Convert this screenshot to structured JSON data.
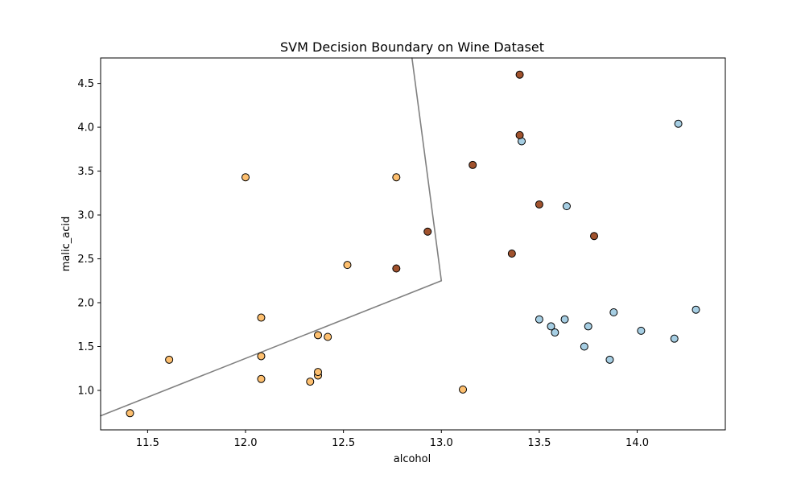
{
  "chart_data": {
    "type": "scatter",
    "title": "SVM Decision Boundary on Wine Dataset",
    "xlabel": "alcohol",
    "ylabel": "malic_acid",
    "xlim": [
      11.26,
      14.45
    ],
    "ylim": [
      0.55,
      4.79
    ],
    "x_ticks": [
      "11.5",
      "12.0",
      "12.5",
      "13.0",
      "13.5",
      "14.0"
    ],
    "x_tick_values": [
      11.5,
      12.0,
      12.5,
      13.0,
      13.5,
      14.0
    ],
    "y_ticks": [
      "1.0",
      "1.5",
      "2.0",
      "2.5",
      "3.0",
      "3.5",
      "4.0",
      "4.5"
    ],
    "y_tick_values": [
      1.0,
      1.5,
      2.0,
      2.5,
      3.0,
      3.5,
      4.0,
      4.5
    ],
    "grid": false,
    "legend": "none",
    "colors": {
      "class_0": "#a6cee3",
      "class_1": "#fdbf6f",
      "class_2": "#a0522d",
      "boundary": "#808080",
      "edge": "#000000"
    },
    "decision_boundary": {
      "vertex": [
        13.0,
        2.25
      ],
      "lower_line": [
        [
          11.26,
          0.71
        ],
        [
          13.0,
          2.25
        ]
      ],
      "upper_line": [
        [
          12.85,
          4.79
        ],
        [
          13.0,
          2.25
        ]
      ]
    },
    "series": [
      {
        "class": "class_0",
        "x": [
          13.41,
          14.21,
          13.64,
          13.5,
          13.56,
          13.58,
          13.63,
          13.73,
          13.75,
          13.86,
          13.88,
          14.02,
          14.19,
          14.3
        ],
        "y": [
          3.84,
          4.04,
          3.1,
          1.81,
          1.73,
          1.66,
          1.81,
          1.5,
          1.73,
          1.35,
          1.89,
          1.68,
          1.59,
          1.92
        ]
      },
      {
        "class": "class_1",
        "x": [
          11.41,
          11.61,
          12.0,
          12.08,
          12.08,
          12.08,
          12.33,
          12.37,
          12.37,
          12.37,
          12.42,
          12.52,
          12.77,
          13.11
        ],
        "y": [
          0.74,
          1.35,
          3.43,
          1.83,
          1.39,
          1.13,
          1.1,
          1.17,
          1.21,
          1.63,
          1.61,
          2.43,
          3.43,
          1.01
        ]
      },
      {
        "class": "class_2",
        "x": [
          12.77,
          12.93,
          13.16,
          13.36,
          13.4,
          13.4,
          13.5,
          13.78
        ],
        "y": [
          2.39,
          2.81,
          3.57,
          2.56,
          4.6,
          3.91,
          3.12,
          2.76
        ]
      }
    ]
  }
}
